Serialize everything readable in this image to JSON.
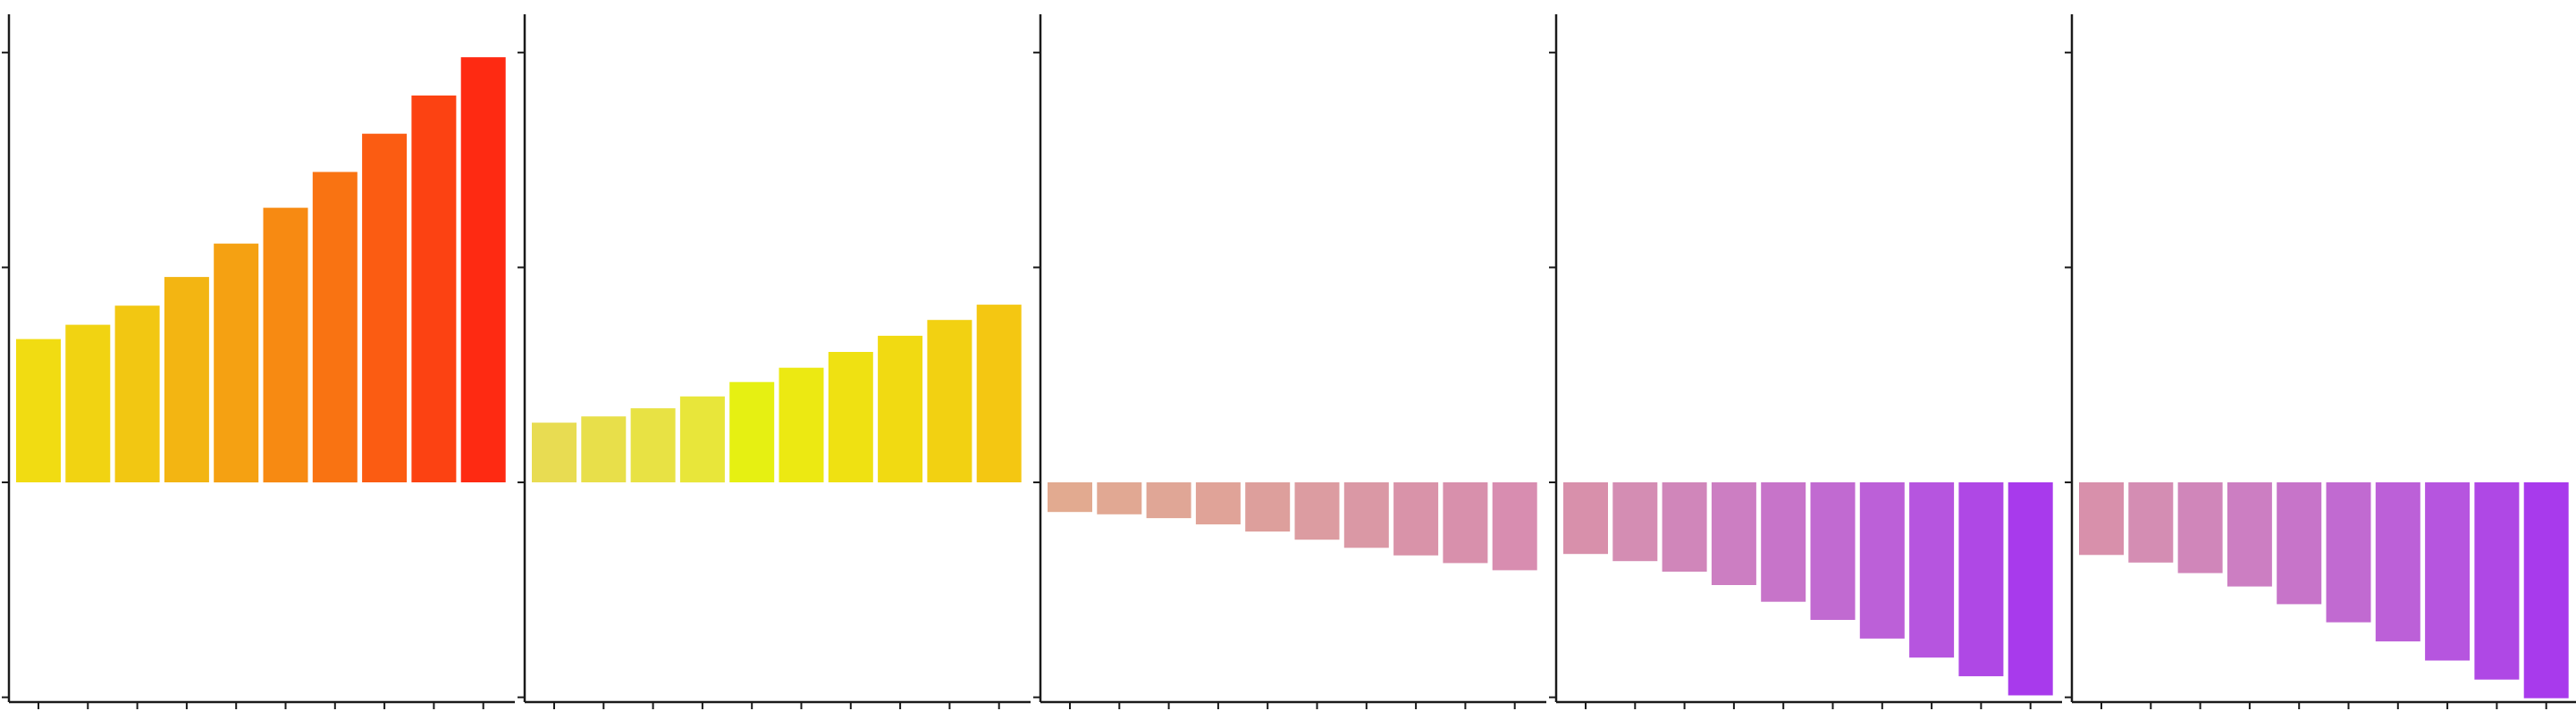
{
  "chart_data": [
    {
      "type": "bar",
      "ylim": [
        -0.46,
        0.98
      ],
      "yticks": [
        -0.45,
        0,
        0.45,
        0.9
      ],
      "grid": false,
      "values": [
        0.3,
        0.33,
        0.37,
        0.43,
        0.5,
        0.575,
        0.65,
        0.73,
        0.81,
        0.89
      ],
      "colors": [
        "#f1dc12",
        "#f1d312",
        "#f2c712",
        "#f3b512",
        "#f5a112",
        "#f78a12",
        "#f97312",
        "#fb5c12",
        "#fc4212",
        "#fe2a12"
      ]
    },
    {
      "type": "bar",
      "ylim": [
        -0.46,
        0.98
      ],
      "yticks": [
        -0.45,
        0,
        0.45,
        0.9
      ],
      "grid": false,
      "values": [
        0.125,
        0.138,
        0.155,
        0.18,
        0.21,
        0.24,
        0.273,
        0.307,
        0.34,
        0.372
      ],
      "colors": [
        "#e8dc52",
        "#e8df4a",
        "#e8e244",
        "#e8e63a",
        "#e6f012",
        "#ece912",
        "#efe112",
        "#f1da12",
        "#f2d112",
        "#f4c712"
      ]
    },
    {
      "type": "bar",
      "ylim": [
        -0.46,
        0.98
      ],
      "yticks": [
        -0.45,
        0,
        0.45,
        0.9
      ],
      "grid": false,
      "values": [
        -0.062,
        -0.067,
        -0.075,
        -0.088,
        -0.103,
        -0.12,
        -0.137,
        -0.153,
        -0.169,
        -0.184
      ],
      "colors": [
        "#e2aa90",
        "#e1a893",
        "#e0a696",
        "#e0a398",
        "#dd9f9c",
        "#dc9ca1",
        "#da98a5",
        "#d993a9",
        "#d890ac",
        "#d88db0"
      ]
    },
    {
      "type": "bar",
      "ylim": [
        -0.46,
        0.98
      ],
      "yticks": [
        -0.45,
        0,
        0.45,
        0.9
      ],
      "grid": false,
      "values": [
        -0.15,
        -0.165,
        -0.187,
        -0.215,
        -0.25,
        -0.288,
        -0.327,
        -0.367,
        -0.406,
        -0.446
      ],
      "colors": [
        "#d890ab",
        "#d48db3",
        "#d086ba",
        "#cc7ec2",
        "#c774c9",
        "#c16ad1",
        "#bc60d8",
        "#b655df",
        "#af48e5",
        "#a83aec"
      ]
    },
    {
      "type": "bar",
      "ylim": [
        -0.46,
        0.98
      ],
      "yticks": [
        -0.45,
        0,
        0.45,
        0.9
      ],
      "grid": false,
      "values": [
        -0.152,
        -0.168,
        -0.19,
        -0.218,
        -0.255,
        -0.293,
        -0.333,
        -0.373,
        -0.413,
        -0.452
      ],
      "colors": [
        "#d890ab",
        "#d48db3",
        "#d086ba",
        "#cc7ec2",
        "#c774c9",
        "#c16ad1",
        "#bc60d8",
        "#b655df",
        "#af48e5",
        "#a83aec"
      ]
    }
  ]
}
